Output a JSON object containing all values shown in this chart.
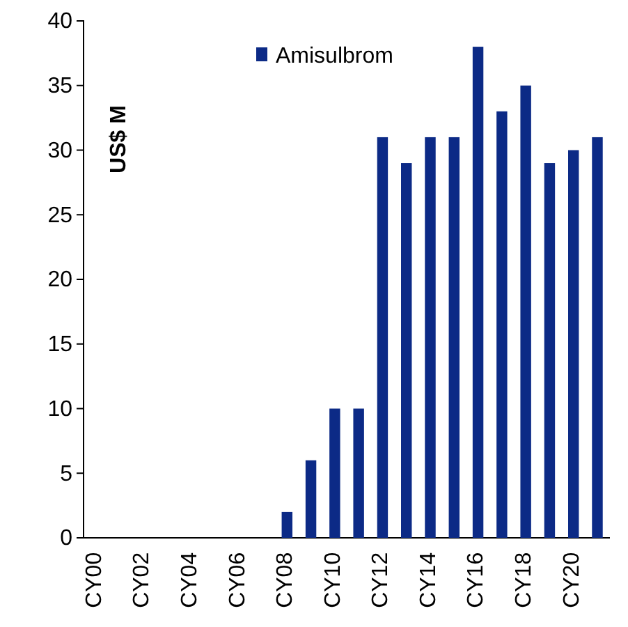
{
  "chart_data": {
    "type": "bar",
    "ylabel": "US$ M",
    "categories": [
      "CY00",
      null,
      "CY02",
      null,
      "CY04",
      null,
      "CY06",
      null,
      "CY08",
      null,
      "CY10",
      null,
      "CY12",
      null,
      "CY14",
      null,
      "CY16",
      null,
      "CY18",
      null,
      "CY20",
      null
    ],
    "series": [
      {
        "name": "Amisulbrom",
        "color": "#0c2a86",
        "values": [
          0,
          0,
          0,
          0,
          0,
          0,
          0,
          0,
          2,
          6,
          10,
          10,
          31,
          29,
          31,
          31,
          38,
          33,
          35,
          29,
          30,
          31
        ]
      }
    ],
    "ylim": [
      0,
      40
    ],
    "yticks": [
      0,
      5,
      10,
      15,
      20,
      25,
      30,
      35,
      40
    ],
    "grid": false,
    "legend": "top"
  }
}
